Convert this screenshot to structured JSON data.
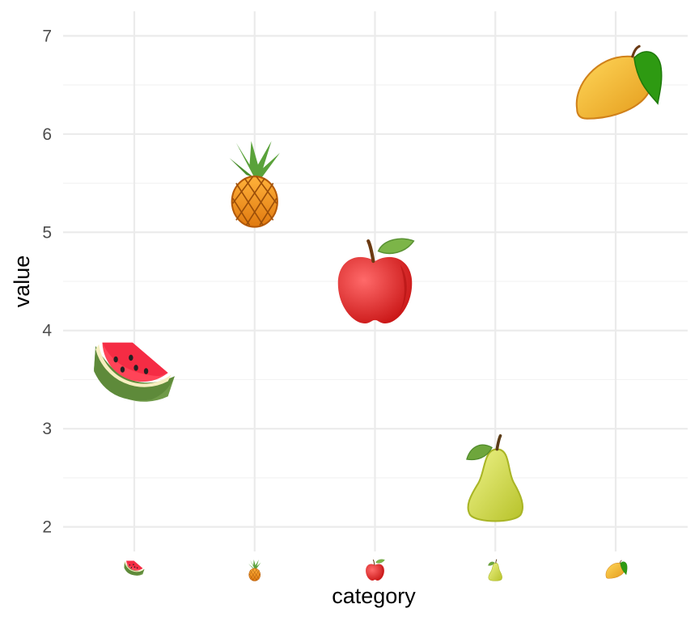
{
  "chart_data": {
    "type": "scatter",
    "xlabel": "category",
    "ylabel": "value",
    "ylim": [
      1.75,
      7.25
    ],
    "y_ticks": [
      2,
      3,
      4,
      5,
      6,
      7
    ],
    "grid": true,
    "categories": [
      "watermelon",
      "pineapple",
      "apple",
      "pear",
      "mango"
    ],
    "points": [
      {
        "category": "watermelon",
        "value": 3.5,
        "icon": "watermelon-icon"
      },
      {
        "category": "pineapple",
        "value": 5.5,
        "icon": "pineapple-icon"
      },
      {
        "category": "apple",
        "value": 4.5,
        "icon": "apple-icon"
      },
      {
        "category": "pear",
        "value": 2.5,
        "icon": "pear-icon"
      },
      {
        "category": "mango",
        "value": 6.5,
        "icon": "mango-icon"
      }
    ],
    "colors": {
      "background": "#ffffff",
      "grid_major": "#ebebeb",
      "grid_minor": "#f2f2f2",
      "tick_text": "#4d4d4d",
      "axis_title": "#000000"
    }
  }
}
